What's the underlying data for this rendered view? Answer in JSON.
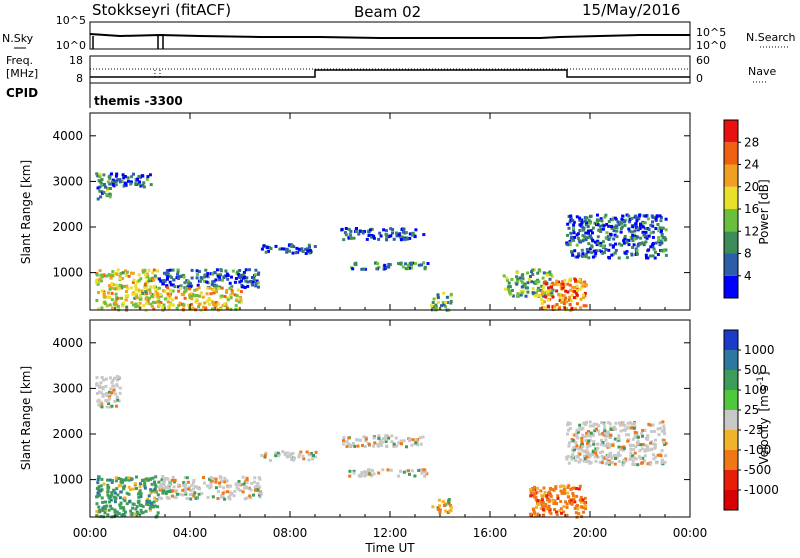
{
  "header": {
    "station": "Stokkseyri (fitACF)",
    "beam": "Beam 02",
    "date": "15/May/2016"
  },
  "top_panel": {
    "nsky_label": "N.Sky",
    "nsearch_label": "N.Search",
    "left_ticks": [
      "10^5",
      "10^0"
    ],
    "right_ticks": [
      "10^5",
      "10^0"
    ],
    "freq_label": "Freq.",
    "freq_unit": "[MHz]",
    "freq_ticks": [
      "18",
      "8"
    ],
    "nave_label": "Nave",
    "nave_ticks": [
      "60",
      "0"
    ],
    "cpid_label": "CPID",
    "cpid_value": "themis -3300"
  },
  "power_colorbar": {
    "label": "Power [dB]",
    "ticks": [
      "4",
      "8",
      "12",
      "16",
      "20",
      "24",
      "28"
    ],
    "colors": [
      "#0000ff",
      "#2d5fa8",
      "#3c8c5a",
      "#6ac03c",
      "#e8e02a",
      "#f0a020",
      "#f06010",
      "#e81010"
    ]
  },
  "velocity_colorbar": {
    "label": "Velocity",
    "unit": "[m s",
    "unit_sup": "-1",
    "unit_close": "]",
    "ticks": [
      "1000",
      "500",
      "100",
      "25",
      "-25",
      "-100",
      "-500",
      "-1000"
    ],
    "colors": [
      "#1a3cc8",
      "#2e78a0",
      "#3c9c5a",
      "#50c83c",
      "#c8c8c8",
      "#f0b428",
      "#f07814",
      "#e81e0a",
      "#d80000"
    ]
  },
  "axes": {
    "ylabel": "Slant Range [km]",
    "xlabel": "Time UT",
    "y_ticks": [
      "1000",
      "2000",
      "3000",
      "4000"
    ],
    "x_ticks": [
      "00:00",
      "04:00",
      "08:00",
      "12:00",
      "16:00",
      "20:00",
      "00:00"
    ]
  },
  "chart_data": [
    {
      "type": "heatmap",
      "name": "power",
      "ylabel": "Slant Range [km]",
      "ylim": [
        180,
        4500
      ],
      "xlim_hours": [
        0,
        24
      ],
      "colorbar": "Power [dB]",
      "regions": [
        {
          "t": [
            0.2,
            2.7
          ],
          "r": [
            200,
            1100
          ],
          "v": 18
        },
        {
          "t": [
            0.2,
            0.8
          ],
          "r": [
            2600,
            3200
          ],
          "v": 10
        },
        {
          "t": [
            0.8,
            2.5
          ],
          "r": [
            2900,
            3200
          ],
          "v": 6
        },
        {
          "t": [
            2.7,
            6.8
          ],
          "r": [
            700,
            1100
          ],
          "v": 6
        },
        {
          "t": [
            2.7,
            6.0
          ],
          "r": [
            200,
            700
          ],
          "v": 20
        },
        {
          "t": [
            6.8,
            9.0
          ],
          "r": [
            1450,
            1650
          ],
          "v": 5
        },
        {
          "t": [
            10.0,
            13.3
          ],
          "r": [
            1750,
            2000
          ],
          "v": 5
        },
        {
          "t": [
            10.3,
            13.5
          ],
          "r": [
            1100,
            1250
          ],
          "v": 8
        },
        {
          "t": [
            13.6,
            14.4
          ],
          "r": [
            200,
            600
          ],
          "v": 12
        },
        {
          "t": [
            16.5,
            18.5
          ],
          "r": [
            500,
            1100
          ],
          "v": 12
        },
        {
          "t": [
            18.0,
            19.8
          ],
          "r": [
            200,
            900
          ],
          "v": 24
        },
        {
          "t": [
            19.0,
            23.0
          ],
          "r": [
            1350,
            2300
          ],
          "v": 6
        }
      ]
    },
    {
      "type": "heatmap",
      "name": "velocity",
      "ylabel": "Slant Range [km]",
      "ylim": [
        180,
        4500
      ],
      "xlim_hours": [
        0,
        24
      ],
      "colorbar": "Velocity [m s-1]",
      "regions": [
        {
          "t": [
            0.2,
            2.7
          ],
          "r": [
            200,
            1100
          ],
          "v": 100
        },
        {
          "t": [
            0.2,
            1.2
          ],
          "r": [
            2600,
            3300
          ],
          "v": 0
        },
        {
          "t": [
            2.7,
            6.8
          ],
          "r": [
            600,
            1100
          ],
          "v": 0
        },
        {
          "t": [
            6.8,
            9.0
          ],
          "r": [
            1450,
            1650
          ],
          "v": 0
        },
        {
          "t": [
            10.0,
            13.3
          ],
          "r": [
            1750,
            2000
          ],
          "v": 0
        },
        {
          "t": [
            10.3,
            13.5
          ],
          "r": [
            1100,
            1250
          ],
          "v": 0
        },
        {
          "t": [
            13.6,
            14.4
          ],
          "r": [
            300,
            600
          ],
          "v": -100
        },
        {
          "t": [
            17.5,
            19.8
          ],
          "r": [
            200,
            900
          ],
          "v": -500
        },
        {
          "t": [
            19.0,
            23.0
          ],
          "r": [
            1350,
            2300
          ],
          "v": 0
        }
      ]
    }
  ]
}
